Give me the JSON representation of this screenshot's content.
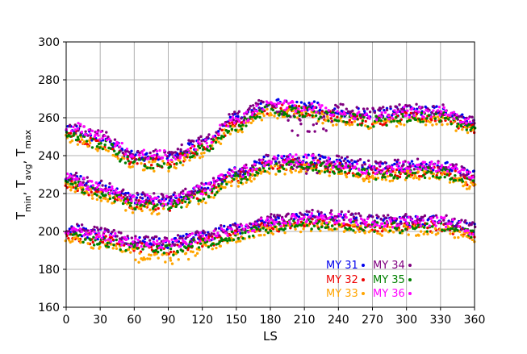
{
  "chart_data": {
    "type": "scatter",
    "title": "",
    "xlabel": "LS",
    "ylabel": {
      "parts": [
        {
          "t": "T"
        },
        {
          "t": "min",
          "sub": true
        },
        {
          "t": ", T"
        },
        {
          "t": "avg",
          "sub": true
        },
        {
          "t": ", T"
        },
        {
          "t": "max",
          "sub": true
        }
      ]
    },
    "xlim": [
      0,
      360
    ],
    "ylim": [
      160,
      300
    ],
    "xticks": [
      "0",
      "30",
      "60",
      "90",
      "120",
      "150",
      "180",
      "210",
      "240",
      "270",
      "300",
      "330",
      "360"
    ],
    "yticks": [
      "160",
      "180",
      "200",
      "220",
      "240",
      "260",
      "280",
      "300"
    ],
    "grid": true,
    "legend_position": "lower-right",
    "series": [
      {
        "name": "MY 31",
        "color": "#0000ee"
      },
      {
        "name": "MY 32",
        "color": "#ee0000"
      },
      {
        "name": "MY 33",
        "color": "#ffa500"
      },
      {
        "name": "MY 34",
        "color": "#800080"
      },
      {
        "name": "MY 35",
        "color": "#008000"
      },
      {
        "name": "MY 36",
        "color": "#ff00ff"
      }
    ],
    "bands": [
      {
        "name": "Tmax",
        "anchors": [
          [
            0,
            253
          ],
          [
            30,
            248
          ],
          [
            60,
            238
          ],
          [
            90,
            238
          ],
          [
            120,
            245
          ],
          [
            150,
            258
          ],
          [
            180,
            266
          ],
          [
            210,
            265
          ],
          [
            240,
            262
          ],
          [
            270,
            260
          ],
          [
            300,
            262
          ],
          [
            330,
            262
          ],
          [
            360,
            256
          ]
        ]
      },
      {
        "name": "Tavg",
        "anchors": [
          [
            0,
            227
          ],
          [
            30,
            222
          ],
          [
            60,
            216
          ],
          [
            90,
            215
          ],
          [
            120,
            221
          ],
          [
            150,
            230
          ],
          [
            180,
            236
          ],
          [
            210,
            237
          ],
          [
            240,
            235
          ],
          [
            270,
            232
          ],
          [
            300,
            233
          ],
          [
            330,
            233
          ],
          [
            360,
            228
          ]
        ]
      },
      {
        "name": "Tmin",
        "anchors": [
          [
            0,
            200
          ],
          [
            30,
            197
          ],
          [
            60,
            193
          ],
          [
            90,
            192
          ],
          [
            120,
            196
          ],
          [
            150,
            200
          ],
          [
            180,
            204
          ],
          [
            210,
            206
          ],
          [
            240,
            206
          ],
          [
            270,
            204
          ],
          [
            300,
            204
          ],
          [
            330,
            204
          ],
          [
            360,
            200
          ]
        ]
      }
    ]
  }
}
